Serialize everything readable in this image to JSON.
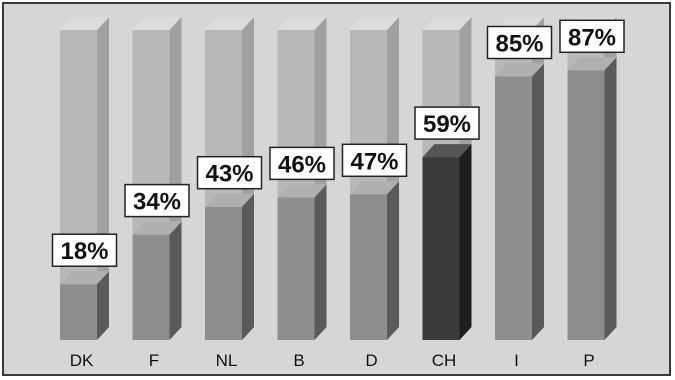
{
  "chart_data": {
    "type": "bar",
    "categories": [
      "DK",
      "F",
      "NL",
      "B",
      "D",
      "CH",
      "I",
      "P"
    ],
    "values": [
      18,
      34,
      43,
      46,
      47,
      59,
      85,
      87
    ],
    "value_labels": [
      "18%",
      "34%",
      "43%",
      "46%",
      "47%",
      "59%",
      "85%",
      "87%"
    ],
    "unit": "%",
    "ylim": [
      0,
      100
    ],
    "title": "",
    "xlabel": "",
    "ylabel": "",
    "grid": false,
    "legend": "none",
    "highlight_category": "CH",
    "colors": {
      "background": "#d6d6d6",
      "frame": "#3a3a3a",
      "track_front": "#b8b8b8",
      "track_top": "#dcdcdc",
      "track_side": "#a0a0a0",
      "bar_front": "#8e8e8e",
      "bar_top": "#b0b0b0",
      "bar_side": "#5a5a5a",
      "highlight_front": "#3a3a3a",
      "highlight_top": "#555555",
      "highlight_side": "#1e1e1e",
      "label_box": "#ffffff",
      "label_border": "#222222"
    }
  }
}
